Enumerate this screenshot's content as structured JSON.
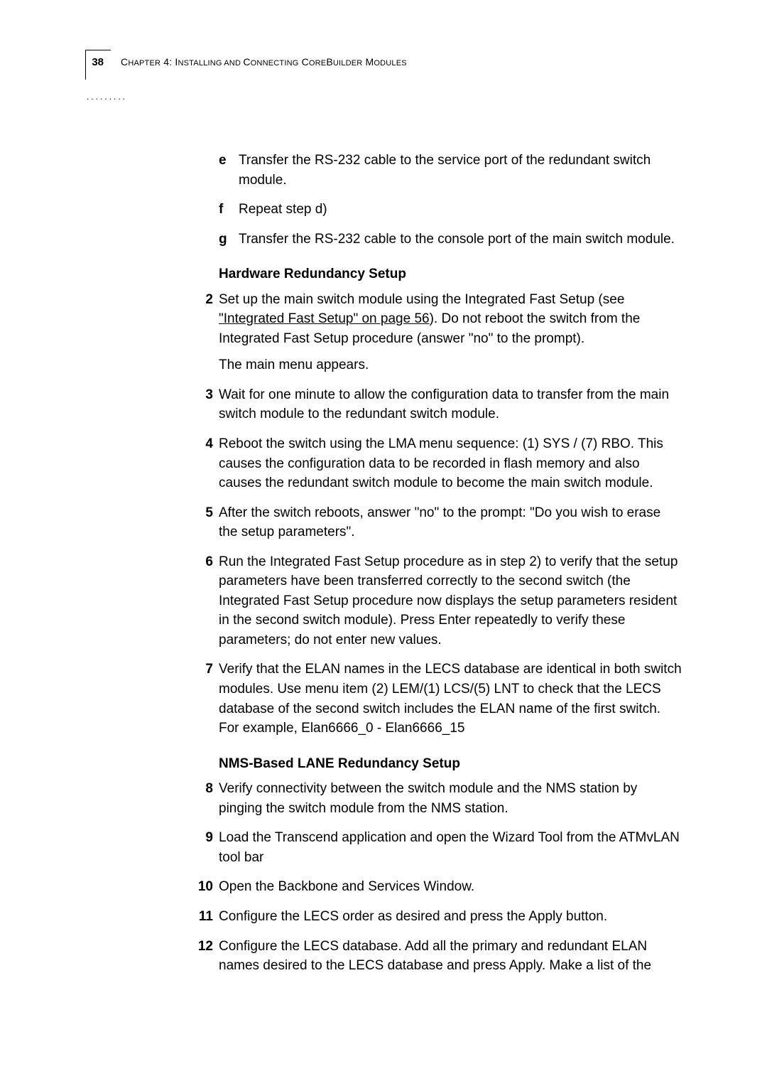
{
  "header": {
    "page_number": "38",
    "chapter_prefix": "C",
    "chapter_word_rest": "HAPTER",
    "chapter_num": " 4: I",
    "chapter_word2_rest": "NSTALLING",
    "chapter_and": " AND ",
    "chapter_c2": "C",
    "chapter_word3_rest": "ONNECTING",
    "chapter_space": " C",
    "chapter_word4_rest": "ORE",
    "chapter_b": "B",
    "chapter_word5_rest": "UILDER",
    "chapter_m": " M",
    "chapter_word6_rest": "ODULES",
    "dots": "........."
  },
  "letters": {
    "e": {
      "marker": "e",
      "text": "Transfer the RS-232 cable to the service port of the redundant switch module."
    },
    "f": {
      "marker": "f",
      "text": "Repeat step d)"
    },
    "g": {
      "marker": "g",
      "text": "Transfer the RS-232 cable to the console port of the main switch module."
    }
  },
  "sections": {
    "hw": "Hardware Redundancy Setup",
    "nms": "NMS-Based LANE Redundancy Setup"
  },
  "steps": {
    "s2": {
      "marker": "2",
      "pre": "Set up the main switch module using the Integrated Fast Setup (see ",
      "link": "\"Integrated Fast Setup\" on page 56",
      "post": "). Do not reboot the switch from the Integrated Fast Setup procedure (answer \"no\" to the prompt).",
      "follow": "The main menu appears."
    },
    "s3": {
      "marker": "3",
      "text": "Wait for one minute to allow the configuration data to transfer from the main switch module to the redundant switch module."
    },
    "s4": {
      "marker": "4",
      "text": "Reboot the switch using the LMA menu sequence: (1) SYS / (7) RBO. This causes the configuration data to be recorded in flash memory and also causes the redundant switch module to become the main switch module."
    },
    "s5": {
      "marker": "5",
      "text": "After the switch reboots, answer \"no\" to the prompt: \"Do you wish to erase the setup parameters\"."
    },
    "s6": {
      "marker": "6",
      "text": "Run the Integrated Fast Setup procedure as in step 2) to verify that the setup parameters have been transferred correctly to the second switch (the Integrated Fast Setup procedure now displays the setup parameters resident in the second switch module). Press Enter repeatedly to verify these parameters; do not enter new values."
    },
    "s7": {
      "marker": "7",
      "text": "Verify that the ELAN names in the LECS database are identical in both switch modules. Use menu item (2) LEM/(1) LCS/(5) LNT to check that the LECS database of the second switch includes the ELAN name of the first switch. For example, Elan6666_0 - Elan6666_15"
    },
    "s8": {
      "marker": "8",
      "text": "Verify connectivity between the switch module and the NMS station by pinging the switch module from the NMS station."
    },
    "s9": {
      "marker": "9",
      "text": "Load the Transcend application and open the Wizard Tool from the ATMvLAN tool bar"
    },
    "s10": {
      "marker": "10",
      "text": "Open the Backbone and Services Window."
    },
    "s11": {
      "marker": "11",
      "text": "Configure the LECS order as desired and press the Apply button."
    },
    "s12": {
      "marker": "12",
      "text": "Configure the LECS database. Add all the primary and redundant ELAN names desired to the LECS database and press Apply. Make a list of the"
    }
  }
}
